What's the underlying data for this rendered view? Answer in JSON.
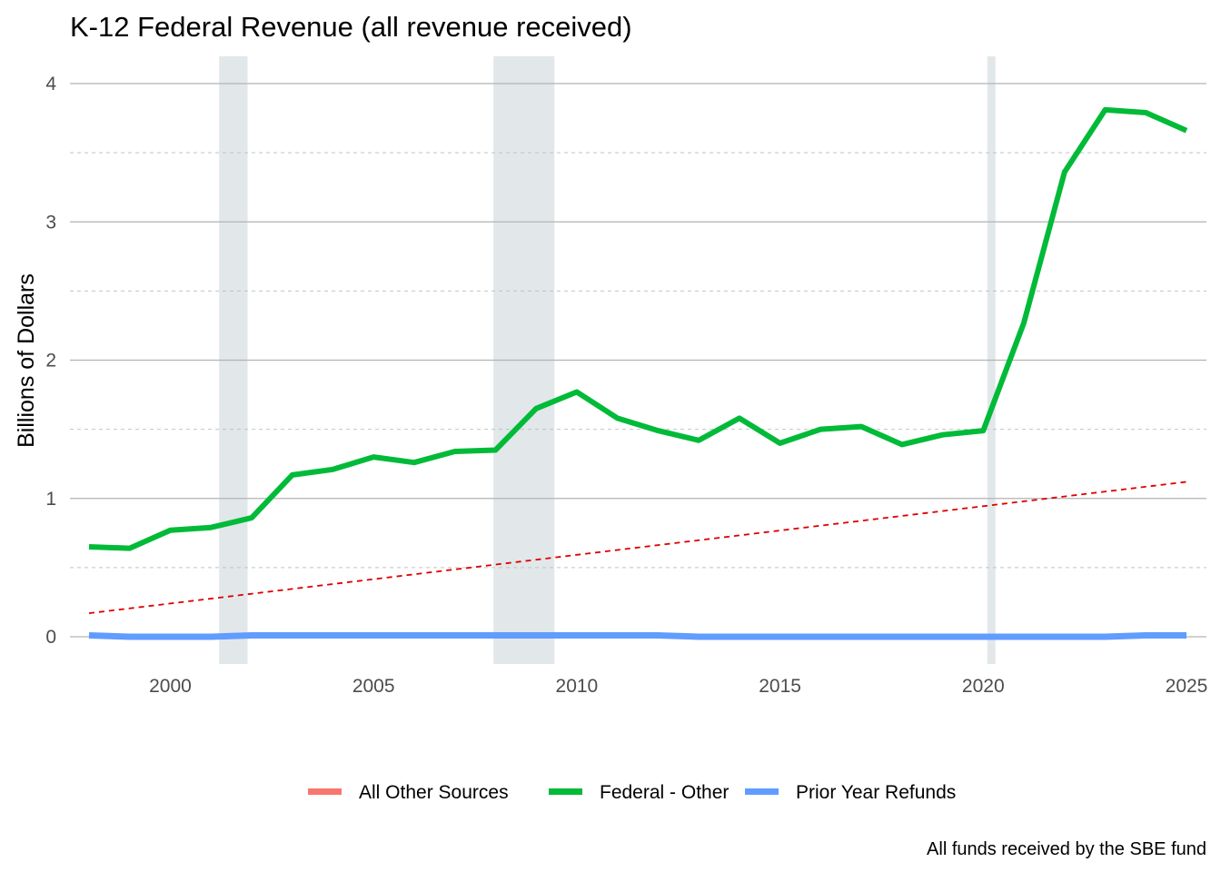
{
  "chart_data": {
    "type": "line",
    "title": "K-12 Federal Revenue (all revenue received)",
    "xlabel": "",
    "ylabel": "Billions of Dollars",
    "caption": "All funds received by the SBE fund",
    "xlim": [
      1998,
      2025
    ],
    "ylim": [
      -0.2,
      4.2
    ],
    "x_ticks": [
      2000,
      2005,
      2010,
      2015,
      2020,
      2025
    ],
    "y_ticks": [
      0,
      1,
      2,
      3,
      4
    ],
    "y_minor_ticks": [
      0.5,
      1.5,
      2.5,
      3.5
    ],
    "grid": true,
    "legend_position": "bottom",
    "recessions": [
      {
        "start": 2001.2,
        "end": 2001.9
      },
      {
        "start": 2007.95,
        "end": 2009.45
      },
      {
        "start": 2020.1,
        "end": 2020.3
      }
    ],
    "recession_color": "#e2e7ea",
    "x": [
      1998,
      1999,
      2000,
      2001,
      2002,
      2003,
      2004,
      2005,
      2006,
      2007,
      2008,
      2009,
      2010,
      2011,
      2012,
      2013,
      2014,
      2015,
      2016,
      2017,
      2018,
      2019,
      2020,
      2021,
      2022,
      2023,
      2024,
      2025
    ],
    "series": [
      {
        "name": "All Other Sources",
        "color": "#f8766d",
        "values": [
          0.0,
          0.0,
          0.0,
          0.0,
          0.0,
          0.0,
          0.0,
          0.0,
          0.0,
          0.0,
          0.0,
          0.0,
          0.0,
          0.0,
          0.0,
          0.0,
          0.0,
          0.0,
          0.0,
          0.0,
          0.0,
          0.0,
          0.0,
          0.0,
          0.0,
          0.0,
          0.0,
          0.0
        ]
      },
      {
        "name": "Federal - Other",
        "color": "#00ba38",
        "values": [
          0.65,
          0.64,
          0.77,
          0.79,
          0.86,
          1.17,
          1.21,
          1.3,
          1.26,
          1.34,
          1.35,
          1.65,
          1.77,
          1.58,
          1.49,
          1.42,
          1.58,
          1.4,
          1.5,
          1.52,
          1.39,
          1.46,
          1.49,
          2.27,
          3.36,
          3.81,
          3.79,
          3.66
        ]
      },
      {
        "name": "Prior Year Refunds",
        "color": "#619cff",
        "values": [
          0.01,
          0.0,
          0.0,
          0.0,
          0.01,
          0.01,
          0.01,
          0.01,
          0.01,
          0.01,
          0.01,
          0.01,
          0.01,
          0.01,
          0.01,
          0.0,
          0.0,
          0.0,
          0.0,
          0.0,
          0.0,
          0.0,
          0.0,
          0.0,
          0.0,
          0.0,
          0.01,
          0.01
        ]
      }
    ],
    "trend_line": {
      "color": "#dd0000",
      "x": [
        1998,
        2025
      ],
      "values": [
        0.17,
        1.12
      ]
    }
  }
}
